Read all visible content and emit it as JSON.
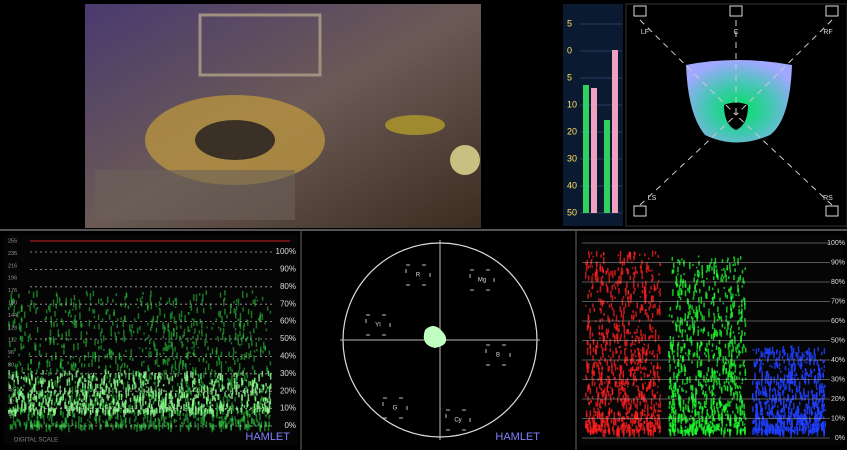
{
  "audio_meter": {
    "scale": [
      "5",
      "0",
      "5",
      "10",
      "20",
      "30",
      "40",
      "50"
    ]
  },
  "surround": {
    "channels": [
      "LF",
      "C",
      "RF",
      "LS",
      "RS"
    ]
  },
  "waveform": {
    "percent_scale": [
      "100%",
      "90%",
      "80%",
      "70%",
      "60%",
      "50%",
      "40%",
      "30%",
      "20%",
      "10%",
      "0%"
    ],
    "digital_scale": [
      "255",
      "235",
      "216",
      "196",
      "176",
      "160",
      "144",
      "128",
      "112",
      "96",
      "80",
      "64",
      "48",
      "32",
      "16"
    ],
    "footer": "DIGITAL SCALE",
    "brand": "HAMLET"
  },
  "vectorscope": {
    "targets": [
      "R",
      "Mg",
      "B",
      "Cy",
      "G",
      "YI"
    ],
    "brand": "HAMLET"
  },
  "rgb_parade": {
    "percent_scale": [
      "100%",
      "90%",
      "80%",
      "70%",
      "60%",
      "50%",
      "40%",
      "30%",
      "20%",
      "10%",
      "0%"
    ]
  }
}
